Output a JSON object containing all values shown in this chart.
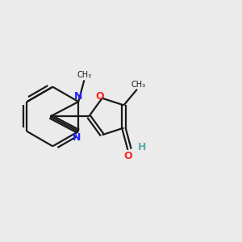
{
  "bg_color": "#ebebeb",
  "bond_color": "#1a1a1a",
  "n_color": "#2020ff",
  "o_color": "#ff2020",
  "h_color": "#5aabab",
  "line_width": 1.6,
  "dbo": 0.06,
  "xlim": [
    -3.5,
    4.5
  ],
  "ylim": [
    -2.8,
    2.8
  ],
  "figsize": [
    3.0,
    3.0
  ],
  "dpi": 100
}
